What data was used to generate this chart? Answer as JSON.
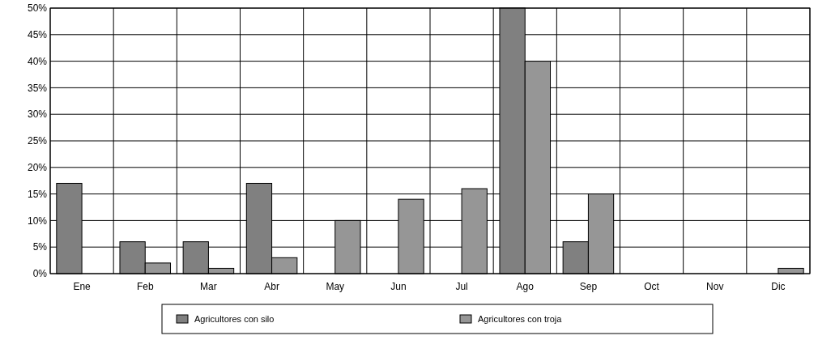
{
  "chart_data": {
    "type": "bar",
    "categories": [
      "Ene",
      "Feb",
      "Mar",
      "Abr",
      "May",
      "Jun",
      "Jul",
      "Ago",
      "Sep",
      "Oct",
      "Nov",
      "Dic"
    ],
    "series": [
      {
        "name": "Agricultores con silo",
        "color": "#808080",
        "values": [
          17,
          6,
          6,
          17,
          0,
          0,
          0,
          50,
          6,
          0,
          0,
          0
        ]
      },
      {
        "name": "Agricultores con troja",
        "color": "#969696",
        "values": [
          0,
          2,
          1,
          3,
          10,
          14,
          16,
          40,
          15,
          0,
          0,
          1
        ]
      }
    ],
    "ylim": [
      0,
      50
    ],
    "yticks": [
      {
        "value": 0,
        "label": "0%"
      },
      {
        "value": 5,
        "label": "5%"
      },
      {
        "value": 10,
        "label": "10%"
      },
      {
        "value": 15,
        "label": "15%"
      },
      {
        "value": 20,
        "label": "20%"
      },
      {
        "value": 25,
        "label": "25%"
      },
      {
        "value": 30,
        "label": "30%"
      },
      {
        "value": 35,
        "label": "35%"
      },
      {
        "value": 40,
        "label": "40%"
      },
      {
        "value": 45,
        "label": "45%"
      },
      {
        "value": 50,
        "label": "50%"
      }
    ],
    "grid": true,
    "legend": "bottom"
  }
}
